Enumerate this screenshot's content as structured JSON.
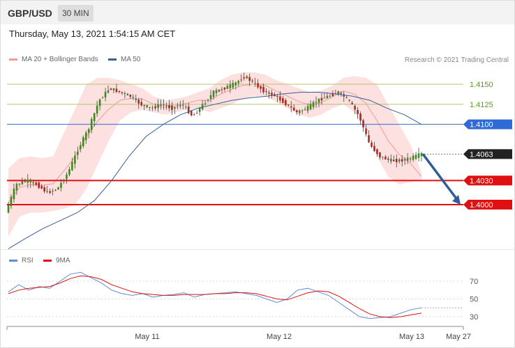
{
  "header": {
    "symbol": "GBP/USD",
    "timeframe": "30 MIN"
  },
  "datetime": "Thursday, May 13, 2021 1:54:15 AM CET",
  "legend": {
    "bb_label": "MA 20 + Bollinger Bands",
    "ma50_label": "MA 50",
    "rsi_label": "RSI",
    "ma9_label": "9MA",
    "colors": {
      "bb": "#f29a9a",
      "ma50": "#3a5f95",
      "rsi": "#5a8ed8",
      "ma9": "#dd1111"
    }
  },
  "copyright": "Research © 2021 Trading Central",
  "chart_data": [
    {
      "type": "candlestick",
      "title": "GBP/USD 30 MIN",
      "ylim": [
        3,
        16
      ],
      "x_ticks": [
        "May 11",
        "May 12",
        "May 13",
        "May 27"
      ],
      "price_levels": [
        {
          "label": "1.4150",
          "value": 1.415,
          "style": "resistance",
          "color": "#b5c36b",
          "text_color": "#5d9a1e"
        },
        {
          "label": "1.4125",
          "value": 1.4125,
          "style": "resistance",
          "color": "#b5c36b",
          "text_color": "#5d9a1e"
        },
        {
          "label": "1.4100",
          "value": 1.41,
          "style": "pivot",
          "color": "#2f6bd6"
        },
        {
          "label": "1.4063",
          "value": 1.4063,
          "style": "current",
          "color": "#222222"
        },
        {
          "label": "1.4030",
          "value": 1.403,
          "style": "support",
          "color": "#e01010"
        },
        {
          "label": "1.4000",
          "value": 1.4,
          "style": "support",
          "color": "#e01010"
        }
      ],
      "forecast": {
        "from": 1.4063,
        "to": 1.4,
        "direction": "down"
      },
      "price_series": [
        1.399,
        1.4025,
        1.403,
        1.4025,
        1.4015,
        1.402,
        1.404,
        1.407,
        1.4095,
        1.413,
        1.4145,
        1.414,
        1.4135,
        1.4125,
        1.412,
        1.4125,
        1.412,
        1.4125,
        1.411,
        1.4125,
        1.414,
        1.4145,
        1.415,
        1.416,
        1.415,
        1.414,
        1.4135,
        1.4125,
        1.4115,
        1.412,
        1.413,
        1.4135,
        1.414,
        1.413,
        1.411,
        1.4075,
        1.406,
        1.4055,
        1.4055,
        1.4058,
        1.4063
      ],
      "series_ma20_upper": [
        1.4045,
        1.4058,
        1.406,
        1.4058,
        1.406,
        1.409,
        1.412,
        1.415,
        1.4158,
        1.4158,
        1.4155,
        1.415,
        1.4145,
        1.4135,
        1.413,
        1.4132,
        1.4135,
        1.414,
        1.4145,
        1.4155,
        1.4162,
        1.4165,
        1.4165,
        1.4162,
        1.4155,
        1.415,
        1.4145,
        1.414,
        1.4142,
        1.4148,
        1.4158,
        1.416,
        1.4158,
        1.415,
        1.4125,
        1.41,
        1.4075,
        1.404
      ],
      "series_ma20_lower": [
        1.396,
        1.3985,
        1.399,
        1.399,
        1.3992,
        1.3995,
        1.4,
        1.402,
        1.405,
        1.408,
        1.4105,
        1.4115,
        1.4118,
        1.4115,
        1.4112,
        1.4115,
        1.4118,
        1.412,
        1.4115,
        1.412,
        1.4125,
        1.4132,
        1.4135,
        1.4135,
        1.4128,
        1.412,
        1.4112,
        1.4108,
        1.4112,
        1.412,
        1.4125,
        1.4115,
        1.4095,
        1.406,
        1.4035,
        1.4025,
        1.4028,
        1.403
      ],
      "series_ma50": [
        1.3945,
        1.3958,
        1.397,
        1.398,
        1.399,
        1.4005,
        1.403,
        1.406,
        1.4085,
        1.41,
        1.4112,
        1.412,
        1.4125,
        1.413,
        1.4133,
        1.4135,
        1.4138,
        1.414,
        1.414,
        1.4138,
        1.4135,
        1.413,
        1.412,
        1.4112,
        1.41
      ]
    },
    {
      "type": "line",
      "title": "RSI",
      "ylim": [
        20,
        90
      ],
      "y_ticks": [
        70,
        50,
        30
      ],
      "series": [
        {
          "name": "RSI",
          "values": [
            58,
            66,
            60,
            64,
            62,
            70,
            78,
            80,
            74,
            68,
            60,
            56,
            54,
            56,
            52,
            54,
            55,
            57,
            52,
            55,
            56,
            57,
            58,
            56,
            54,
            50,
            46,
            50,
            60,
            62,
            58,
            54,
            46,
            38,
            30,
            28,
            29,
            30,
            34,
            38,
            40
          ]
        },
        {
          "name": "9MA",
          "values": [
            56,
            60,
            62,
            63,
            64,
            68,
            73,
            76,
            75,
            72,
            66,
            62,
            58,
            56,
            55,
            54,
            54,
            55,
            55,
            55,
            56,
            56,
            57,
            57,
            56,
            53,
            50,
            49,
            53,
            57,
            59,
            58,
            53,
            46,
            39,
            33,
            30,
            29,
            30,
            32,
            34
          ]
        }
      ]
    }
  ]
}
